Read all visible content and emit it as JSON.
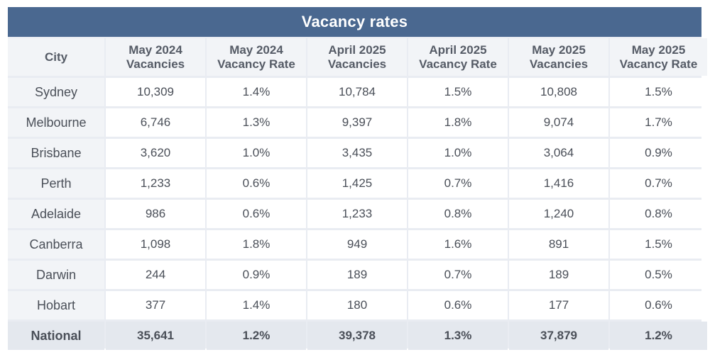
{
  "chart_data": {
    "type": "table",
    "title": "Vacancy rates",
    "columns": [
      {
        "line1": "City",
        "line2": ""
      },
      {
        "line1": "May 2024",
        "line2": "Vacancies"
      },
      {
        "line1": "May 2024",
        "line2": "Vacancy Rate"
      },
      {
        "line1": "April 2025",
        "line2": "Vacancies"
      },
      {
        "line1": "April 2025",
        "line2": "Vacancy Rate"
      },
      {
        "line1": "May 2025",
        "line2": "Vacancies"
      },
      {
        "line1": "May 2025",
        "line2": "Vacancy Rate"
      }
    ],
    "rows": [
      [
        "Sydney",
        "10,309",
        "1.4%",
        "10,784",
        "1.5%",
        "10,808",
        "1.5%"
      ],
      [
        "Melbourne",
        "6,746",
        "1.3%",
        "9,397",
        "1.8%",
        "9,074",
        "1.7%"
      ],
      [
        "Brisbane",
        "3,620",
        "1.0%",
        "3,435",
        "1.0%",
        "3,064",
        "0.9%"
      ],
      [
        "Perth",
        "1,233",
        "0.6%",
        "1,425",
        "0.7%",
        "1,416",
        "0.7%"
      ],
      [
        "Adelaide",
        "986",
        "0.6%",
        "1,233",
        "0.8%",
        "1,240",
        "0.8%"
      ],
      [
        "Canberra",
        "1,098",
        "1.8%",
        "949",
        "1.6%",
        "891",
        "1.5%"
      ],
      [
        "Darwin",
        "244",
        "0.9%",
        "189",
        "0.7%",
        "189",
        "0.5%"
      ],
      [
        "Hobart",
        "377",
        "1.4%",
        "180",
        "0.6%",
        "177",
        "0.6%"
      ],
      [
        "National",
        "35,641",
        "1.2%",
        "39,378",
        "1.3%",
        "37,879",
        "1.2%"
      ]
    ],
    "total_row_label": "National",
    "colors": {
      "header_band": "#4a6890",
      "header_text": "#ffffff",
      "column_header_bg": "#f2f4f7",
      "total_row_bg": "#e4e8ee"
    }
  }
}
